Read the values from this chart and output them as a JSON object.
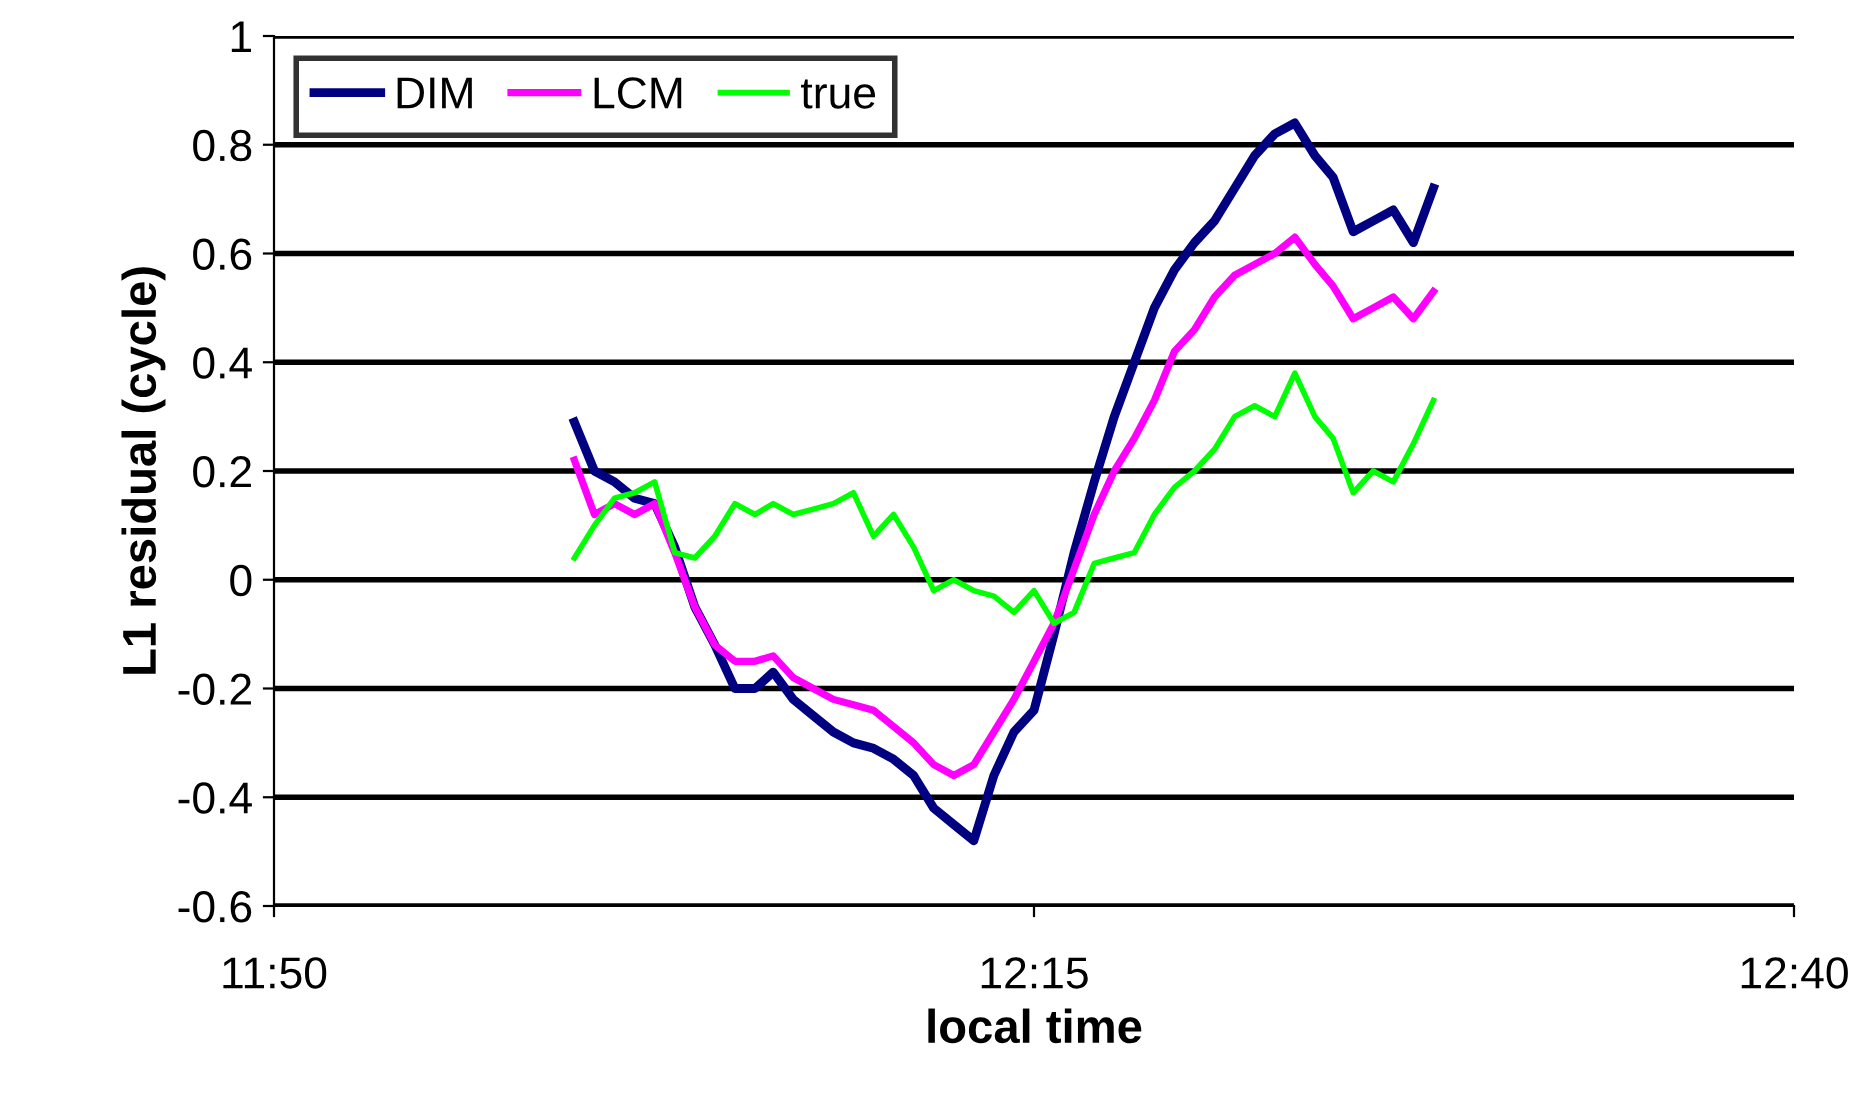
{
  "chart_data": {
    "type": "line",
    "xlabel": "local time",
    "ylabel": "L1 residual (cycle)",
    "x": [
      11.998,
      12.009,
      12.02,
      12.031,
      12.042,
      12.053,
      12.064,
      12.075,
      12.086,
      12.097,
      12.107,
      12.118,
      12.129,
      12.14,
      12.151,
      12.162,
      12.173,
      12.184,
      12.195,
      12.206,
      12.217,
      12.228,
      12.239,
      12.25,
      12.261,
      12.272,
      12.283,
      12.294,
      12.305,
      12.316,
      12.327,
      12.338,
      12.349,
      12.36,
      12.371,
      12.382,
      12.393,
      12.404,
      12.414,
      12.425,
      12.436,
      12.447,
      12.458,
      12.469
    ],
    "series": [
      {
        "name": "DIM",
        "color": "#000080",
        "values": [
          0.29,
          0.2,
          0.18,
          0.15,
          0.14,
          0.06,
          -0.05,
          -0.12,
          -0.2,
          -0.2,
          -0.17,
          -0.22,
          -0.25,
          -0.28,
          -0.3,
          -0.31,
          -0.33,
          -0.36,
          -0.42,
          -0.45,
          -0.48,
          -0.36,
          -0.28,
          -0.24,
          -0.1,
          0.05,
          0.18,
          0.3,
          0.4,
          0.5,
          0.57,
          0.62,
          0.66,
          0.72,
          0.78,
          0.82,
          0.84,
          0.78,
          0.74,
          0.64,
          0.66,
          0.68,
          0.62,
          0.72
        ]
      },
      {
        "name": "LCM",
        "color": "#ff00ff",
        "values": [
          0.22,
          0.12,
          0.14,
          0.12,
          0.14,
          0.05,
          -0.05,
          -0.12,
          -0.15,
          -0.15,
          -0.14,
          -0.18,
          -0.2,
          -0.22,
          -0.23,
          -0.24,
          -0.27,
          -0.3,
          -0.34,
          -0.36,
          -0.34,
          -0.28,
          -0.22,
          -0.15,
          -0.08,
          0.02,
          0.12,
          0.2,
          0.26,
          0.33,
          0.42,
          0.46,
          0.52,
          0.56,
          0.58,
          0.6,
          0.63,
          0.58,
          0.54,
          0.48,
          0.5,
          0.52,
          0.48,
          0.53
        ]
      },
      {
        "name": "true",
        "color": "#00ff00",
        "values": [
          0.04,
          0.1,
          0.15,
          0.16,
          0.18,
          0.05,
          0.04,
          0.08,
          0.14,
          0.12,
          0.14,
          0.12,
          0.13,
          0.14,
          0.16,
          0.08,
          0.12,
          0.06,
          -0.02,
          0.0,
          -0.02,
          -0.03,
          -0.06,
          -0.02,
          -0.08,
          -0.06,
          0.03,
          0.04,
          0.05,
          0.12,
          0.17,
          0.2,
          0.24,
          0.3,
          0.32,
          0.3,
          0.38,
          0.3,
          0.26,
          0.16,
          0.2,
          0.18,
          0.25,
          0.33
        ]
      }
    ],
    "xlim": [
      11.8333,
      12.6667
    ],
    "xticks": [
      {
        "value": 11.8333,
        "label": "11:50"
      },
      {
        "value": 12.25,
        "label": "12:15"
      },
      {
        "value": 12.6667,
        "label": "12:40"
      }
    ],
    "ylim": [
      -0.6,
      1
    ],
    "yticks": [
      -0.6,
      -0.4,
      -0.2,
      0,
      0.2,
      0.4,
      0.6,
      0.8,
      1
    ],
    "grid": "y",
    "legend": "top left",
    "marker": "none",
    "line_style": "solid"
  }
}
